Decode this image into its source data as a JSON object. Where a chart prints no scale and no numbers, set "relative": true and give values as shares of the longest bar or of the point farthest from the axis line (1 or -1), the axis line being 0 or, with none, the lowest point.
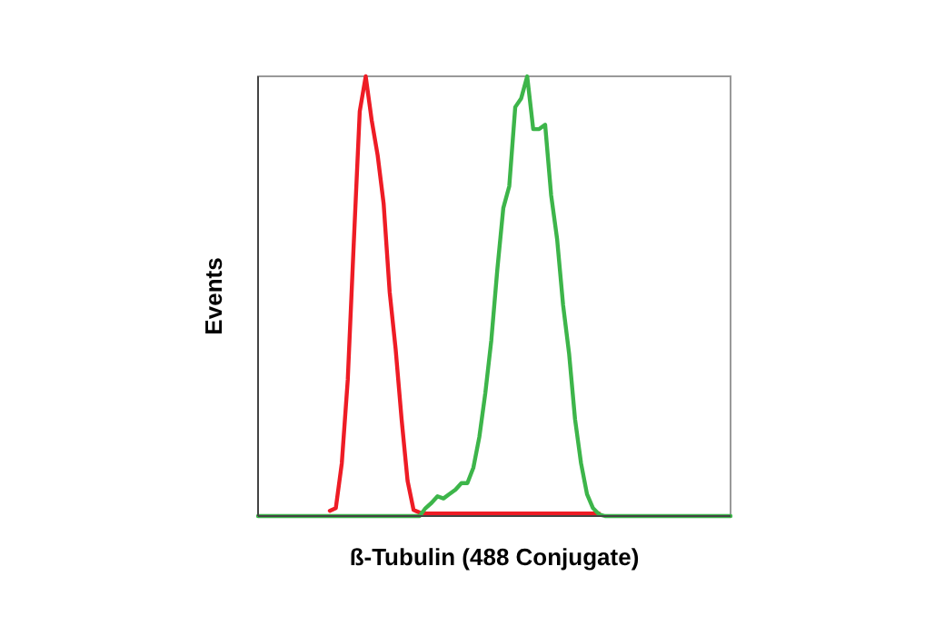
{
  "chart_data": {
    "type": "line",
    "relative": true,
    "xlabel": "ß-Tubulin (488 Conjugate)",
    "ylabel": "Events",
    "categories": [
      null,
      null,
      null,
      null,
      null,
      null,
      null,
      null,
      null,
      null,
      null,
      null,
      null,
      null,
      null,
      null,
      null,
      null,
      null,
      null,
      null,
      null,
      null,
      null,
      null,
      null,
      null,
      null,
      null,
      null,
      null,
      null,
      null,
      null,
      null,
      null,
      null,
      null,
      null,
      null,
      null,
      null,
      null,
      null,
      null,
      null,
      null,
      null,
      null,
      null,
      null,
      null,
      null,
      null,
      null,
      null,
      null,
      null,
      null,
      null,
      null,
      null,
      null,
      null,
      null,
      null,
      null,
      null,
      null,
      null,
      null,
      null,
      null,
      null,
      null,
      null,
      null,
      null,
      null,
      null
    ],
    "marker": "none",
    "grid": false,
    "series": [
      {
        "color": "#ee1c25",
        "values": [
          null,
          null,
          null,
          null,
          null,
          null,
          null,
          null,
          null,
          null,
          null,
          null,
          0.012,
          0.018,
          0.12,
          0.31,
          0.62,
          0.92,
          1,
          0.9,
          0.82,
          0.71,
          0.51,
          0.38,
          0.22,
          0.08,
          0.014,
          0.008,
          0.006,
          0.006,
          0.006,
          0.006,
          0.006,
          0.006,
          0.006,
          0.006,
          0.006,
          0.006,
          0.006,
          0.006,
          0.006,
          0.006,
          0.006,
          0.006,
          0.006,
          0.006,
          0.006,
          0.006,
          0.006,
          0.006,
          0.006,
          0.006,
          0.006,
          0.006,
          0.006,
          0.006,
          0.006,
          0.006,
          null,
          null,
          null,
          null,
          null,
          null,
          null,
          null,
          null,
          null,
          null,
          null,
          null,
          null,
          null,
          null,
          null,
          null,
          null,
          null,
          null,
          null
        ]
      },
      {
        "color": "#3db54a",
        "values": [
          0,
          0,
          0,
          0,
          0,
          0,
          0,
          0,
          0,
          0,
          0,
          0,
          0,
          0,
          0,
          0,
          0,
          0,
          0,
          0,
          0,
          0,
          0,
          0,
          0,
          0,
          0,
          0,
          0.018,
          0.03,
          0.045,
          0.04,
          0.05,
          0.06,
          0.075,
          0.075,
          0.11,
          0.18,
          0.28,
          0.4,
          0.56,
          0.7,
          0.75,
          0.93,
          0.95,
          1,
          0.88,
          0.88,
          0.89,
          0.73,
          0.63,
          0.48,
          0.37,
          0.22,
          0.12,
          0.05,
          0.018,
          0.004,
          0,
          0,
          0,
          0,
          0,
          0,
          0,
          0,
          0,
          0,
          0,
          0,
          0,
          0,
          0,
          0,
          0,
          0,
          0,
          0,
          0,
          0
        ]
      }
    ]
  }
}
